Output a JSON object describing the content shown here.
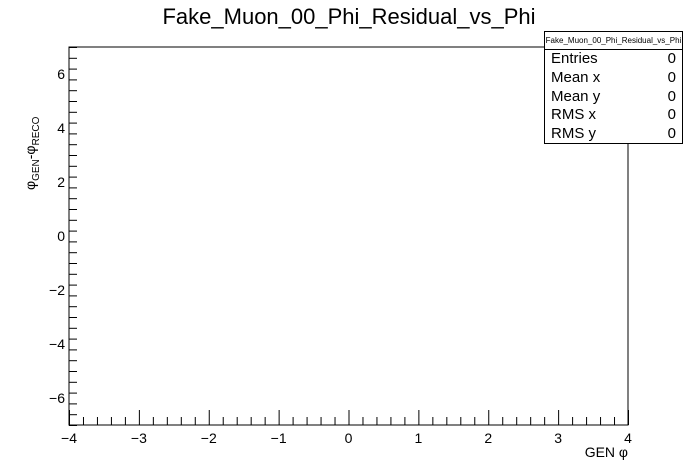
{
  "chart_data": {
    "type": "scatter",
    "title": "Fake_Muon_00_Phi_Residual_vs_Phi",
    "xlabel": "GEN φ",
    "ylabel_main": "φ",
    "ylabel_sub1": "GEN",
    "ylabel_mid": "-φ",
    "ylabel_sub2": "RECO",
    "xlim": [
      -4,
      4
    ],
    "ylim": [
      -7,
      7
    ],
    "x_ticks": [
      -4,
      -3,
      -2,
      -1,
      0,
      1,
      2,
      3,
      4
    ],
    "x_tick_labels": [
      "−4",
      "−3",
      "−2",
      "−1",
      "0",
      "1",
      "2",
      "3",
      "4"
    ],
    "y_ticks": [
      -6,
      -4,
      -2,
      0,
      2,
      4,
      6
    ],
    "y_tick_labels": [
      "−6",
      "−4",
      "−2",
      "0",
      "2",
      "4",
      "6"
    ],
    "points": [],
    "grid": false
  },
  "stats_box": {
    "name": "Fake_Muon_00_Phi_Residual_vs_Phi",
    "rows": [
      {
        "label": "Entries",
        "value": "0"
      },
      {
        "label": "Mean x",
        "value": "0"
      },
      {
        "label": "Mean y",
        "value": "0"
      },
      {
        "label": "RMS x",
        "value": "0"
      },
      {
        "label": "RMS y",
        "value": "0"
      }
    ]
  }
}
